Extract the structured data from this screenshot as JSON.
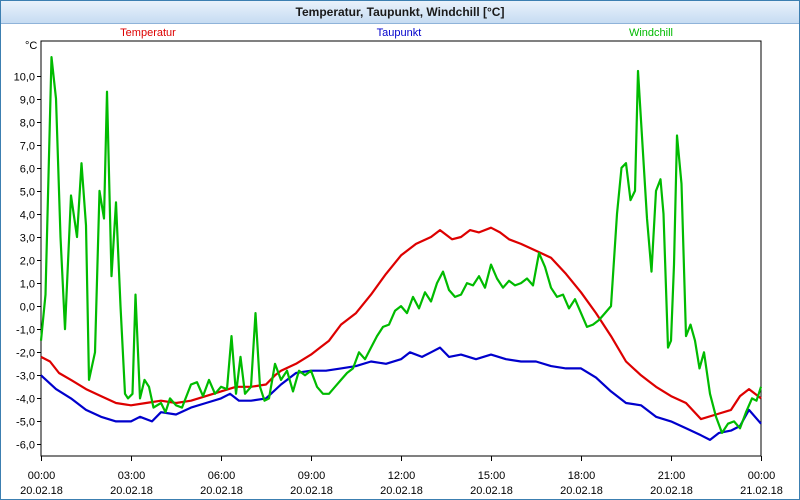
{
  "window": {
    "title": "Temperatur, Taupunkt, Windchill [°C]"
  },
  "chart_data": {
    "type": "line",
    "title": "Temperatur, Taupunkt, Windchill [°C]",
    "ylabel": "°C",
    "xlabel": "",
    "ylim": [
      -6.5,
      11.5
    ],
    "xlim": [
      0,
      24
    ],
    "grid": true,
    "legend_position": "top",
    "y_ticks": [
      10,
      9,
      8,
      7,
      6,
      5,
      4,
      3,
      2,
      1,
      0,
      -1,
      -2,
      -3,
      -4,
      -5,
      -6
    ],
    "y_tick_labels": [
      "10,0",
      "9,0",
      "8,0",
      "7,0",
      "6,0",
      "5,0",
      "4,0",
      "3,0",
      "2,0",
      "1,0",
      "0,0",
      "-1,0",
      "-2,0",
      "-3,0",
      "-4,0",
      "-5,0",
      "-6,0"
    ],
    "x_ticks": [
      {
        "t": 0,
        "time": "00:00",
        "date": "20.02.18"
      },
      {
        "t": 3,
        "time": "03:00",
        "date": "20.02.18"
      },
      {
        "t": 6,
        "time": "06:00",
        "date": "20.02.18"
      },
      {
        "t": 9,
        "time": "09:00",
        "date": "20.02.18"
      },
      {
        "t": 12,
        "time": "12:00",
        "date": "20.02.18"
      },
      {
        "t": 15,
        "time": "15:00",
        "date": "20.02.18"
      },
      {
        "t": 18,
        "time": "18:00",
        "date": "20.02.18"
      },
      {
        "t": 21,
        "time": "21:00",
        "date": "20.02.18"
      },
      {
        "t": 24,
        "time": "00:00",
        "date": "21.02.18"
      }
    ],
    "series": [
      {
        "name": "Temperatur",
        "color": "#dd0000",
        "points": [
          [
            0,
            -2.2
          ],
          [
            0.3,
            -2.4
          ],
          [
            0.6,
            -2.9
          ],
          [
            1,
            -3.2
          ],
          [
            1.5,
            -3.6
          ],
          [
            2,
            -3.9
          ],
          [
            2.5,
            -4.2
          ],
          [
            3,
            -4.3
          ],
          [
            3.5,
            -4.2
          ],
          [
            4,
            -4.1
          ],
          [
            4.5,
            -4.2
          ],
          [
            5,
            -4.1
          ],
          [
            5.5,
            -3.9
          ],
          [
            6,
            -3.7
          ],
          [
            6.5,
            -3.5
          ],
          [
            7,
            -3.5
          ],
          [
            7.5,
            -3.4
          ],
          [
            7.8,
            -3.0
          ],
          [
            8,
            -2.8
          ],
          [
            8.5,
            -2.5
          ],
          [
            9,
            -2.1
          ],
          [
            9.3,
            -1.8
          ],
          [
            9.6,
            -1.5
          ],
          [
            10,
            -0.8
          ],
          [
            10.5,
            -0.3
          ],
          [
            11,
            0.5
          ],
          [
            11.5,
            1.4
          ],
          [
            12,
            2.2
          ],
          [
            12.5,
            2.7
          ],
          [
            13,
            3.0
          ],
          [
            13.3,
            3.3
          ],
          [
            13.7,
            2.9
          ],
          [
            14,
            3.0
          ],
          [
            14.3,
            3.3
          ],
          [
            14.6,
            3.2
          ],
          [
            15,
            3.4
          ],
          [
            15.3,
            3.2
          ],
          [
            15.6,
            2.9
          ],
          [
            16,
            2.7
          ],
          [
            16.5,
            2.4
          ],
          [
            17,
            2.1
          ],
          [
            17.5,
            1.4
          ],
          [
            18,
            0.6
          ],
          [
            18.5,
            -0.3
          ],
          [
            19,
            -1.3
          ],
          [
            19.5,
            -2.4
          ],
          [
            20,
            -3.0
          ],
          [
            20.5,
            -3.5
          ],
          [
            21,
            -3.9
          ],
          [
            21.5,
            -4.2
          ],
          [
            22,
            -4.9
          ],
          [
            22.5,
            -4.7
          ],
          [
            23,
            -4.5
          ],
          [
            23.3,
            -3.9
          ],
          [
            23.6,
            -3.6
          ],
          [
            24,
            -4.0
          ]
        ]
      },
      {
        "name": "Taupunkt",
        "color": "#0000cc",
        "points": [
          [
            0,
            -3.0
          ],
          [
            0.5,
            -3.6
          ],
          [
            1,
            -4.0
          ],
          [
            1.5,
            -4.5
          ],
          [
            2,
            -4.8
          ],
          [
            2.5,
            -5.0
          ],
          [
            3,
            -5.0
          ],
          [
            3.3,
            -4.8
          ],
          [
            3.7,
            -5.0
          ],
          [
            4,
            -4.6
          ],
          [
            4.5,
            -4.7
          ],
          [
            5,
            -4.4
          ],
          [
            5.5,
            -4.2
          ],
          [
            6,
            -4.0
          ],
          [
            6.3,
            -3.8
          ],
          [
            6.6,
            -4.1
          ],
          [
            7,
            -4.1
          ],
          [
            7.5,
            -4.0
          ],
          [
            8,
            -3.4
          ],
          [
            8.5,
            -2.9
          ],
          [
            9,
            -2.8
          ],
          [
            9.5,
            -2.8
          ],
          [
            10,
            -2.7
          ],
          [
            10.5,
            -2.6
          ],
          [
            11,
            -2.4
          ],
          [
            11.5,
            -2.5
          ],
          [
            12,
            -2.3
          ],
          [
            12.3,
            -2.0
          ],
          [
            12.7,
            -2.2
          ],
          [
            13,
            -2.0
          ],
          [
            13.3,
            -1.8
          ],
          [
            13.6,
            -2.2
          ],
          [
            14,
            -2.1
          ],
          [
            14.5,
            -2.3
          ],
          [
            15,
            -2.1
          ],
          [
            15.5,
            -2.3
          ],
          [
            16,
            -2.4
          ],
          [
            16.5,
            -2.4
          ],
          [
            17,
            -2.6
          ],
          [
            17.5,
            -2.7
          ],
          [
            18,
            -2.7
          ],
          [
            18.5,
            -3.1
          ],
          [
            19,
            -3.7
          ],
          [
            19.5,
            -4.2
          ],
          [
            20,
            -4.3
          ],
          [
            20.5,
            -4.8
          ],
          [
            21,
            -5.0
          ],
          [
            21.5,
            -5.3
          ],
          [
            22,
            -5.6
          ],
          [
            22.3,
            -5.8
          ],
          [
            22.6,
            -5.5
          ],
          [
            23,
            -5.4
          ],
          [
            23.3,
            -5.2
          ],
          [
            23.6,
            -4.5
          ],
          [
            24,
            -5.1
          ]
        ]
      },
      {
        "name": "Windchill",
        "color": "#00bb00",
        "points": [
          [
            0,
            -1.5
          ],
          [
            0.15,
            0.5
          ],
          [
            0.35,
            10.8
          ],
          [
            0.5,
            9.0
          ],
          [
            0.65,
            3.0
          ],
          [
            0.8,
            -1.0
          ],
          [
            1,
            4.8
          ],
          [
            1.2,
            3.0
          ],
          [
            1.35,
            6.2
          ],
          [
            1.5,
            3.5
          ],
          [
            1.6,
            -3.2
          ],
          [
            1.8,
            -2.0
          ],
          [
            1.95,
            5.0
          ],
          [
            2.1,
            3.8
          ],
          [
            2.2,
            9.3
          ],
          [
            2.35,
            1.3
          ],
          [
            2.5,
            4.5
          ],
          [
            2.65,
            0.0
          ],
          [
            2.8,
            -3.8
          ],
          [
            2.9,
            -4.0
          ],
          [
            3.05,
            -3.8
          ],
          [
            3.15,
            0.5
          ],
          [
            3.3,
            -4.0
          ],
          [
            3.45,
            -3.2
          ],
          [
            3.6,
            -3.5
          ],
          [
            3.75,
            -4.4
          ],
          [
            4.0,
            -4.2
          ],
          [
            4.15,
            -4.6
          ],
          [
            4.3,
            -4.0
          ],
          [
            4.5,
            -4.3
          ],
          [
            4.7,
            -4.4
          ],
          [
            5.0,
            -3.4
          ],
          [
            5.2,
            -3.3
          ],
          [
            5.4,
            -3.9
          ],
          [
            5.6,
            -3.2
          ],
          [
            5.8,
            -3.8
          ],
          [
            6.0,
            -3.5
          ],
          [
            6.2,
            -3.6
          ],
          [
            6.35,
            -1.3
          ],
          [
            6.5,
            -3.8
          ],
          [
            6.65,
            -2.2
          ],
          [
            6.8,
            -3.8
          ],
          [
            7.0,
            -3.5
          ],
          [
            7.15,
            -0.3
          ],
          [
            7.3,
            -3.5
          ],
          [
            7.45,
            -4.1
          ],
          [
            7.6,
            -4.0
          ],
          [
            7.8,
            -2.5
          ],
          [
            8.0,
            -3.2
          ],
          [
            8.2,
            -2.8
          ],
          [
            8.4,
            -3.7
          ],
          [
            8.6,
            -2.8
          ],
          [
            8.8,
            -3.0
          ],
          [
            9.0,
            -2.8
          ],
          [
            9.2,
            -3.5
          ],
          [
            9.4,
            -3.8
          ],
          [
            9.6,
            -3.8
          ],
          [
            9.8,
            -3.5
          ],
          [
            10.0,
            -3.2
          ],
          [
            10.2,
            -2.9
          ],
          [
            10.4,
            -2.7
          ],
          [
            10.6,
            -2.0
          ],
          [
            10.8,
            -2.3
          ],
          [
            11.0,
            -1.8
          ],
          [
            11.2,
            -1.3
          ],
          [
            11.4,
            -0.9
          ],
          [
            11.6,
            -0.8
          ],
          [
            11.8,
            -0.2
          ],
          [
            12.0,
            0.0
          ],
          [
            12.2,
            -0.3
          ],
          [
            12.4,
            0.4
          ],
          [
            12.6,
            -0.1
          ],
          [
            12.8,
            0.6
          ],
          [
            13.0,
            0.2
          ],
          [
            13.2,
            1.0
          ],
          [
            13.4,
            1.5
          ],
          [
            13.6,
            0.7
          ],
          [
            13.8,
            0.4
          ],
          [
            14.0,
            0.5
          ],
          [
            14.2,
            1.0
          ],
          [
            14.4,
            0.9
          ],
          [
            14.6,
            1.3
          ],
          [
            14.8,
            0.8
          ],
          [
            15.0,
            1.8
          ],
          [
            15.2,
            1.2
          ],
          [
            15.4,
            0.8
          ],
          [
            15.6,
            1.1
          ],
          [
            15.8,
            0.9
          ],
          [
            16.0,
            1.0
          ],
          [
            16.2,
            1.2
          ],
          [
            16.4,
            0.9
          ],
          [
            16.6,
            2.3
          ],
          [
            16.8,
            1.7
          ],
          [
            17.0,
            0.8
          ],
          [
            17.2,
            0.4
          ],
          [
            17.4,
            0.5
          ],
          [
            17.6,
            -0.1
          ],
          [
            17.8,
            0.3
          ],
          [
            18.0,
            -0.3
          ],
          [
            18.2,
            -0.9
          ],
          [
            18.4,
            -0.8
          ],
          [
            18.6,
            -0.6
          ],
          [
            18.8,
            -0.3
          ],
          [
            19.0,
            0.0
          ],
          [
            19.2,
            4.0
          ],
          [
            19.35,
            6.0
          ],
          [
            19.5,
            6.2
          ],
          [
            19.65,
            4.6
          ],
          [
            19.8,
            5.0
          ],
          [
            19.9,
            10.2
          ],
          [
            20.05,
            7.0
          ],
          [
            20.2,
            3.8
          ],
          [
            20.35,
            1.5
          ],
          [
            20.5,
            5.0
          ],
          [
            20.65,
            5.5
          ],
          [
            20.75,
            4.0
          ],
          [
            20.9,
            -1.8
          ],
          [
            21.0,
            -1.5
          ],
          [
            21.1,
            1.8
          ],
          [
            21.2,
            7.4
          ],
          [
            21.35,
            5.3
          ],
          [
            21.5,
            -1.3
          ],
          [
            21.65,
            -0.8
          ],
          [
            21.8,
            -1.5
          ],
          [
            21.95,
            -2.7
          ],
          [
            22.1,
            -2.0
          ],
          [
            22.3,
            -3.8
          ],
          [
            22.5,
            -4.8
          ],
          [
            22.7,
            -5.5
          ],
          [
            22.9,
            -5.1
          ],
          [
            23.1,
            -5.0
          ],
          [
            23.3,
            -5.3
          ],
          [
            23.5,
            -4.6
          ],
          [
            23.7,
            -4.0
          ],
          [
            23.85,
            -4.1
          ],
          [
            24.0,
            -3.5
          ]
        ]
      }
    ]
  }
}
